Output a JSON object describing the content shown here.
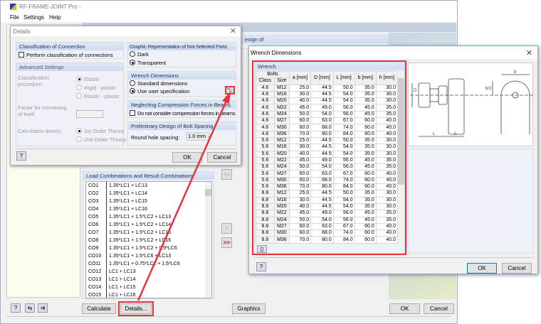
{
  "main": {
    "title": "RF-FRAME-JOINT Pro -",
    "menu": [
      "File",
      "Settings",
      "Help"
    ],
    "design_of": "esign of",
    "loads_title": "Load Combinations and Result Combinations",
    "loads": [
      [
        "CO1",
        "1.35*LC1 + LC13"
      ],
      [
        "CO2",
        "1.35*LC1 + LC14"
      ],
      [
        "CO3",
        "1.35*LC1 + LC15"
      ],
      [
        "CO4",
        "1.35*LC1 + LC16"
      ],
      [
        "CO5",
        "1.35*LC1 + 1.5*LC2 + LC13"
      ],
      [
        "CO6",
        "1.35*LC1 + 1.5*LC2 + LC14"
      ],
      [
        "CO7",
        "1.35*LC1 + 1.5*LC2 + LC15"
      ],
      [
        "CO8",
        "1.35*LC1 + 1.5*LC2 + LC16"
      ],
      [
        "CO9",
        "1.35*LC1 + 1.5*LC2 + 0.9*LC6"
      ],
      [
        "CO10",
        "1.35*LC1 + 1.5*LC6 + LC13"
      ],
      [
        "CO11",
        "1.35*LC1 + 0.75*LC2 + 1.5*LC6"
      ],
      [
        "CO12",
        "LC1 + LC13"
      ],
      [
        "CO13",
        "LC1 + LC14"
      ],
      [
        "CO14",
        "LC1 + LC15"
      ],
      [
        "CO15",
        "LC1 + LC16"
      ]
    ],
    "btn_remove_all": "<<",
    "btn_add": ">",
    "btn_add_all": ">>",
    "calculate": "Calculate",
    "details": "Details...",
    "graphics": "Graphics",
    "ok": "OK",
    "cancel": "Cancel"
  },
  "details": {
    "title": "Details",
    "classification": {
      "title": "Classification of Connection",
      "perform": "Perform classification of connections"
    },
    "advanced": {
      "title": "Advanced Settings",
      "procedure_label": "Classification procedure:",
      "procedures": [
        "Elastic",
        "Rigid - plastic",
        "Elastic - plastic"
      ],
      "factor_label": "Factor for increasing of load:",
      "theory_label": "Calculation theory:",
      "theories": [
        "1st Order Theory",
        "2nd Order Theory"
      ]
    },
    "graphic": {
      "title": "Graphic Representation of Not Selected Parts",
      "options": [
        "Dark",
        "Transparent"
      ],
      "selected": "Transparent"
    },
    "wrench": {
      "title": "Wrench Dimensions",
      "options": [
        "Standard dimensions",
        "Use user specification"
      ],
      "selected": "Use user specification"
    },
    "compression": {
      "title": "Neglecting Compression Forces in Beams",
      "option": "Do not consider compression forces in beams"
    },
    "spacing": {
      "title": "Preliminary Design of Bolt Spacing",
      "label": "Round hole spacing:",
      "value": "1.0 mm"
    },
    "ok": "OK",
    "cancel": "Cancel"
  },
  "wrench_dialog": {
    "title": "Wrench Dimensions",
    "group": "Wrench",
    "bolts": "Bolts",
    "columns": [
      "Class",
      "Size",
      "a [mm]",
      "D [mm]",
      "L [mm]",
      "b [mm]",
      "h [mm]"
    ],
    "rows": [
      [
        "4.6",
        "M12",
        "25.0",
        "44.5",
        "50.0",
        "35.0",
        "30.0"
      ],
      [
        "4.6",
        "M16",
        "30.0",
        "44.5",
        "54.0",
        "35.0",
        "30.0"
      ],
      [
        "4.6",
        "M20",
        "40.0",
        "44.5",
        "54.0",
        "35.0",
        "30.0"
      ],
      [
        "4.6",
        "M22",
        "45.0",
        "49.0",
        "56.0",
        "45.0",
        "35.0"
      ],
      [
        "4.6",
        "M24",
        "50.0",
        "54.0",
        "56.0",
        "45.0",
        "35.0"
      ],
      [
        "4.6",
        "M27",
        "60.0",
        "63.0",
        "67.0",
        "60.0",
        "40.0"
      ],
      [
        "4.6",
        "M30",
        "60.0",
        "68.0",
        "74.0",
        "60.0",
        "40.0"
      ],
      [
        "4.6",
        "M36",
        "70.0",
        "80.0",
        "84.0",
        "60.0",
        "40.0"
      ],
      [
        "5.6",
        "M12",
        "25.0",
        "44.5",
        "50.0",
        "35.0",
        "30.0"
      ],
      [
        "5.6",
        "M16",
        "30.0",
        "44.5",
        "54.0",
        "35.0",
        "30.0"
      ],
      [
        "5.6",
        "M20",
        "40.0",
        "44.5",
        "54.0",
        "35.0",
        "30.0"
      ],
      [
        "5.6",
        "M22",
        "45.0",
        "49.0",
        "56.0",
        "45.0",
        "35.0"
      ],
      [
        "5.6",
        "M24",
        "50.0",
        "54.0",
        "56.0",
        "45.0",
        "35.0"
      ],
      [
        "5.6",
        "M27",
        "60.0",
        "63.0",
        "67.0",
        "60.0",
        "40.0"
      ],
      [
        "5.6",
        "M30",
        "60.0",
        "68.0",
        "74.0",
        "60.0",
        "40.0"
      ],
      [
        "5.6",
        "M36",
        "70.0",
        "80.0",
        "84.0",
        "60.0",
        "40.0"
      ],
      [
        "8.8",
        "M12",
        "25.0",
        "44.5",
        "50.0",
        "35.0",
        "30.0"
      ],
      [
        "8.8",
        "M16",
        "30.0",
        "44.5",
        "54.0",
        "35.0",
        "30.0"
      ],
      [
        "8.8",
        "M20",
        "40.0",
        "44.5",
        "54.0",
        "35.0",
        "30.0"
      ],
      [
        "8.8",
        "M22",
        "45.0",
        "49.0",
        "56.0",
        "45.0",
        "35.0"
      ],
      [
        "8.8",
        "M24",
        "50.0",
        "54.0",
        "56.0",
        "45.0",
        "35.0"
      ],
      [
        "8.8",
        "M27",
        "60.0",
        "63.0",
        "67.0",
        "60.0",
        "40.0"
      ],
      [
        "8.8",
        "M30",
        "60.0",
        "68.0",
        "74.0",
        "60.0",
        "40.0"
      ],
      [
        "8.8",
        "M36",
        "70.0",
        "80.0",
        "84.0",
        "60.0",
        "40.0"
      ]
    ],
    "diagram_labels": {
      "D": "D",
      "b2": "b/2",
      "b": "b",
      "L": "L",
      "h": "h"
    },
    "ok": "OK",
    "cancel": "Cancel"
  },
  "colors": {
    "highlight": "#e8323c",
    "group_header": "#cfdbee",
    "accent": "#0078d7"
  }
}
